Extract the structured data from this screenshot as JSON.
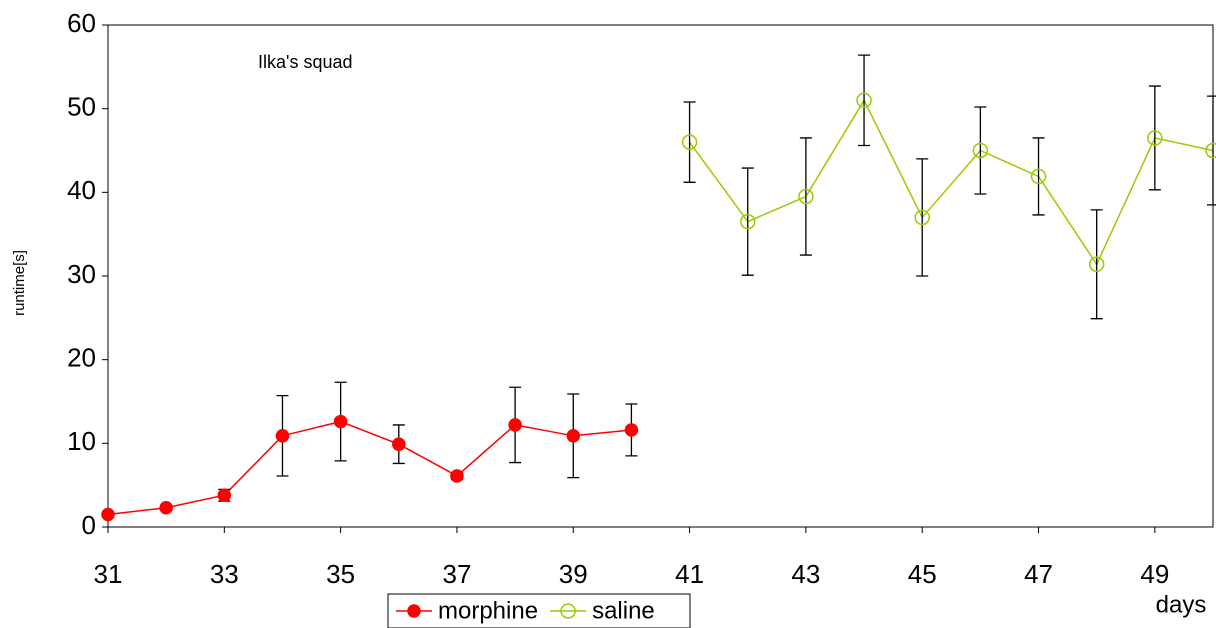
{
  "chart_data": {
    "type": "line",
    "annotation": "Ilka's squad",
    "x_label": "days",
    "y_label": "runtime[s]",
    "xlim": [
      31,
      50
    ],
    "xticks": [
      31,
      33,
      35,
      37,
      39,
      41,
      43,
      45,
      47,
      49
    ],
    "ylim": [
      0,
      60
    ],
    "yticks": [
      0,
      10,
      20,
      30,
      40,
      50,
      60
    ],
    "series": [
      {
        "name": "morphine",
        "color": "#ff0000",
        "marker": "filled",
        "x": [
          31,
          32,
          33,
          34,
          35,
          36,
          37,
          38,
          39,
          40
        ],
        "values": [
          1.5,
          2.3,
          3.8,
          10.9,
          12.6,
          9.9,
          6.1,
          12.2,
          10.9,
          11.6
        ],
        "errors": [
          0.3,
          0.3,
          0.7,
          4.8,
          4.7,
          2.3,
          0.4,
          4.5,
          5.0,
          3.1
        ]
      },
      {
        "name": "saline",
        "color": "#99cc00",
        "marker": "open",
        "x": [
          41,
          42,
          43,
          44,
          45,
          46,
          47,
          48,
          49,
          50
        ],
        "values": [
          46.0,
          36.5,
          39.5,
          51.0,
          37.0,
          45.0,
          41.9,
          31.4,
          46.5,
          45.0
        ],
        "errors": [
          4.8,
          6.4,
          7.0,
          5.4,
          7.0,
          5.2,
          4.6,
          6.5,
          6.2,
          6.5
        ]
      }
    ]
  }
}
